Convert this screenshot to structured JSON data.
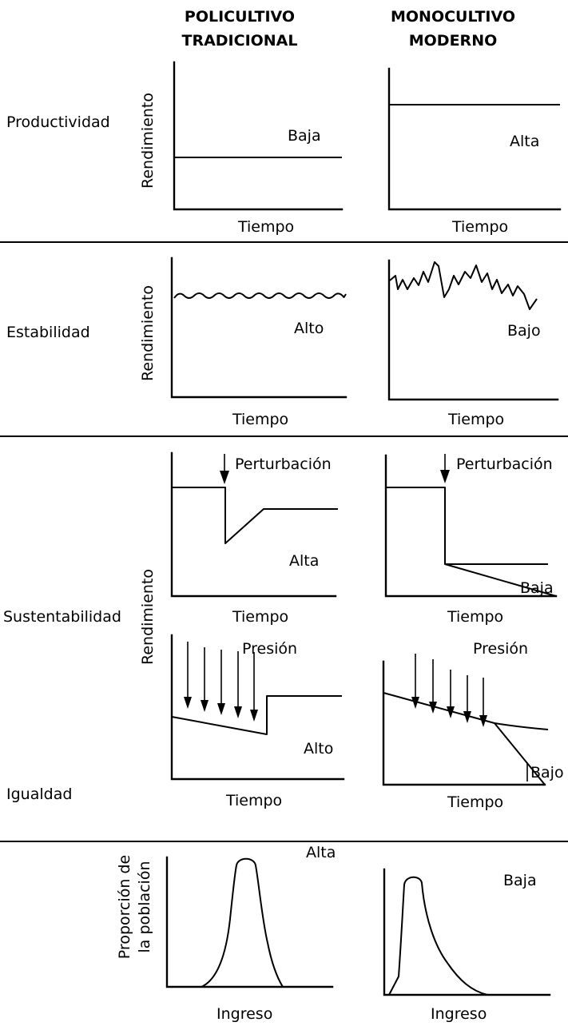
{
  "headers": {
    "traditional": [
      "POLICULTIVO",
      "TRADICIONAL"
    ],
    "modern": [
      "MONOCULTIVO",
      "MODERNO"
    ]
  },
  "rows": {
    "productivity": "Productividad",
    "stability": "Estabilidad",
    "sustainability": "Sustentabilidad",
    "equality": "Igualdad"
  },
  "axes": {
    "yield": "Rendimiento",
    "time": "Tiempo",
    "income": "Ingreso",
    "population": [
      "Proporción de",
      "la población"
    ]
  },
  "panels": {
    "productivity_traditional": "Baja",
    "productivity_modern": "Alta",
    "stability_traditional": "Alto",
    "stability_modern": "Bajo",
    "disturbance_label": "Perturbación",
    "disturbance_traditional": "Alta",
    "disturbance_modern": "Baja",
    "pressure_label": "Presión",
    "pressure_traditional": "Alto",
    "pressure_modern": "Bajo",
    "equality_traditional": "Alta",
    "equality_modern": "Baja"
  }
}
